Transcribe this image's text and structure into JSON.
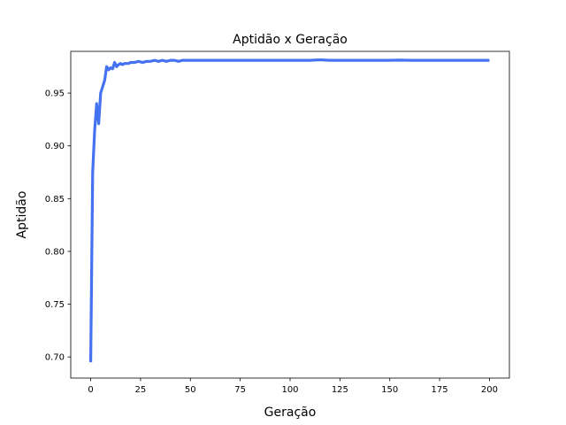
{
  "chart_data": {
    "type": "line",
    "title": "Aptidão x Geração",
    "xlabel": "Geração",
    "ylabel": "Aptidão",
    "xlim": [
      -10,
      210
    ],
    "ylim": [
      0.68,
      0.9895
    ],
    "xticks": [
      0,
      25,
      50,
      75,
      100,
      125,
      150,
      175,
      200
    ],
    "yticks": [
      0.7,
      0.75,
      0.8,
      0.85,
      0.9,
      0.95
    ],
    "ytick_labels": [
      "0.70",
      "0.75",
      "0.80",
      "0.85",
      "0.90",
      "0.95"
    ],
    "grid": false,
    "legend": "none",
    "series": [
      {
        "color": "#4472f0",
        "x": [
          0,
          1,
          2,
          3,
          4,
          5,
          6,
          7,
          8,
          9,
          10,
          11,
          12,
          13,
          14,
          15,
          16,
          17,
          18,
          19,
          20,
          22,
          24,
          26,
          28,
          30,
          32,
          34,
          36,
          38,
          40,
          42,
          44,
          46,
          48,
          50,
          55,
          60,
          70,
          80,
          90,
          100,
          110,
          115,
          120,
          130,
          140,
          150,
          155,
          160,
          170,
          180,
          190,
          200
        ],
        "y": [
          0.695,
          0.875,
          0.915,
          0.94,
          0.921,
          0.95,
          0.956,
          0.962,
          0.975,
          0.972,
          0.974,
          0.973,
          0.979,
          0.975,
          0.977,
          0.978,
          0.977,
          0.978,
          0.978,
          0.978,
          0.979,
          0.979,
          0.98,
          0.979,
          0.98,
          0.98,
          0.981,
          0.98,
          0.981,
          0.98,
          0.981,
          0.981,
          0.98,
          0.981,
          0.981,
          0.981,
          0.981,
          0.981,
          0.981,
          0.981,
          0.981,
          0.981,
          0.981,
          0.9815,
          0.981,
          0.981,
          0.981,
          0.981,
          0.9812,
          0.981,
          0.981,
          0.981,
          0.981,
          0.981
        ]
      }
    ]
  }
}
